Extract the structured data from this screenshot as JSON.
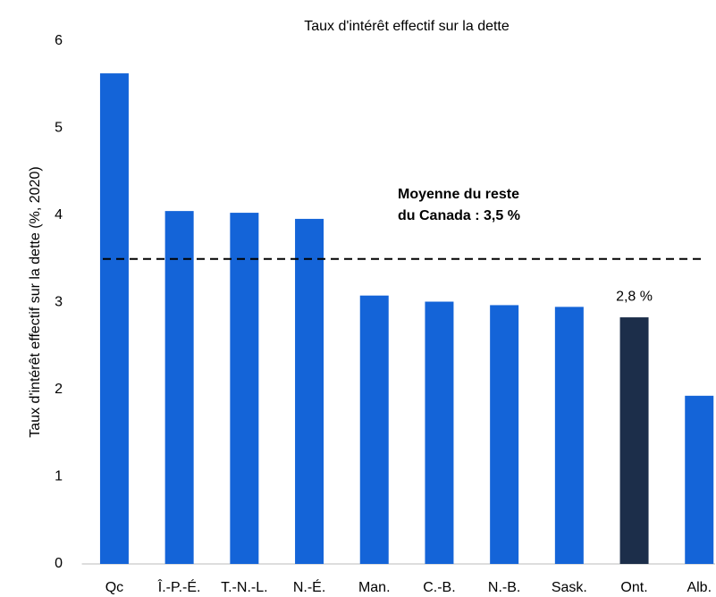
{
  "chart_data": {
    "type": "bar",
    "title": "Taux d'intérêt effectif sur la dette",
    "y_label": "Taux d'intérêt effectif sur la dette (%, 2020)",
    "categories": [
      "Qc",
      "Î.-P.-É.",
      "T.-N.-L.",
      "N.-É.",
      "Man.",
      "C.-B.",
      "N.-B.",
      "Sask.",
      "Ont.",
      "Alb."
    ],
    "values": [
      5.63,
      4.05,
      4.03,
      3.96,
      3.08,
      3.01,
      2.97,
      2.95,
      2.83,
      1.93
    ],
    "value_labels": [
      null,
      null,
      null,
      null,
      null,
      null,
      null,
      null,
      "2,8 %",
      null
    ],
    "colors": [
      "#1464d8",
      "#1464d8",
      "#1464d8",
      "#1464d8",
      "#1464d8",
      "#1464d8",
      "#1464d8",
      "#1464d8",
      "#1c2e4a",
      "#1464d8"
    ],
    "reference_line": {
      "value": 3.5,
      "label": [
        "Moyenne du reste",
        "du Canada : 3,5 %"
      ]
    },
    "ylim": [
      0,
      6
    ],
    "yticks": [
      0,
      1,
      2,
      3,
      4,
      5,
      6
    ],
    "grid": false
  }
}
